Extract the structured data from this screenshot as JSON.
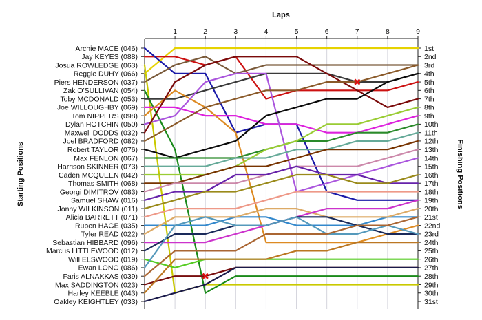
{
  "chart_data": {
    "type": "line",
    "title": "",
    "xlabel": "Laps",
    "ylabel_left": "Starting Positions",
    "ylabel_right": "Finishing Positions",
    "x": [
      0,
      1,
      2,
      3,
      4,
      5,
      6,
      7,
      8,
      9
    ],
    "xlim": [
      0,
      9
    ],
    "ylim": [
      1,
      31
    ],
    "y_inverted": true,
    "grid": "vertical",
    "starting_labels": [
      "Archie MACE (046)",
      "Jay KEYES (088)",
      "Josua ROWLEDGE (063)",
      "Reggie DUHY (066)",
      "Piers HENDERSON (037)",
      "Zak O'SULLIVAN (054)",
      "Toby MCDONALD (053)",
      "Joe WILLOUGHBY (069)",
      "Tom NIPPERS (098)",
      "Dylan HOTCHIN (050)",
      "Maxwell DODDS (032)",
      "Joel BRADFORD (082)",
      "Robert TAYLOR (076)",
      "Max FENLON (067)",
      "Harrison SKINNER (073)",
      "Caden MCQUEEN (042)",
      "Thomas SMITH (068)",
      "Georgi DIMITROV (083)",
      "Samuel SHAW (016)",
      "Jonny WILKINSON (011)",
      "Alicia BARRETT (071)",
      "Ruben HAGE (035)",
      "Tyler READ (022)",
      "Sebastian HIBBARD (096)",
      "Marcus LITTLEWOOD (012)",
      "Will ELSWOOD (019)",
      "Ewan LONG (086)",
      "Faris ALNAKKAS (039)",
      "Max SADDINGTON (023)",
      "Harley KEEBLE (043)",
      "Oakley KEIGHTLEY (033)"
    ],
    "finishing_labels": [
      "1st",
      "2nd",
      "3rd",
      "4th",
      "5th",
      "6th",
      "7th",
      "8th",
      "9th",
      "10th",
      "11th",
      "12th",
      "13th",
      "14th",
      "15th",
      "16th",
      "17th",
      "18th",
      "19th",
      "20th",
      "21st",
      "22nd",
      "23rd",
      "24th",
      "25th",
      "26th",
      "27th",
      "28th",
      "29th",
      "30th",
      "31st"
    ],
    "series": [
      {
        "color": "#e6d200",
        "values": [
          4,
          1,
          1,
          1,
          1,
          1,
          1,
          1,
          1,
          1
        ]
      },
      {
        "color": "#cc1111",
        "values": [
          2,
          2,
          3,
          2,
          7,
          6,
          6,
          6,
          6,
          5
        ]
      },
      {
        "color": "#1a1aa8",
        "values": [
          1,
          4,
          4,
          11,
          10,
          10,
          18,
          19,
          19,
          19
        ]
      },
      {
        "color": "#c9c900",
        "values": [
          3,
          30,
          29,
          29,
          29,
          29,
          29,
          29,
          29,
          29
        ]
      },
      {
        "color": "#7a5a3a",
        "values": [
          5,
          3,
          2,
          4,
          3,
          3,
          3,
          3,
          3,
          3
        ]
      },
      {
        "color": "#1a8a1a",
        "values": [
          6,
          13,
          30,
          28,
          28,
          28,
          28,
          28,
          28,
          28
        ]
      },
      {
        "color": "#3a3a3a",
        "values": [
          7,
          7,
          6,
          5,
          4,
          4,
          4,
          5,
          5,
          4
        ]
      },
      {
        "color": "#dd22dd",
        "values": [
          8,
          8,
          9,
          9,
          10,
          10,
          11,
          11,
          10,
          9
        ]
      },
      {
        "color": "#dd8a22",
        "values": [
          9,
          6,
          8,
          11,
          24,
          24,
          24,
          24,
          23,
          22
        ]
      },
      {
        "color": "#aa55dd",
        "values": [
          10,
          9,
          5,
          4,
          4,
          18,
          17,
          16,
          15,
          14
        ]
      },
      {
        "color": "#7a0a0a",
        "values": [
          11,
          5,
          3,
          2,
          2,
          2,
          4,
          6,
          8,
          7
        ]
      },
      {
        "color": "#8a5a2a",
        "values": [
          12,
          10,
          8,
          7,
          6,
          6,
          5,
          5,
          4,
          3
        ]
      },
      {
        "color": "#0a0a0a",
        "values": [
          13,
          14,
          13,
          12,
          9,
          8,
          7,
          7,
          5,
          4
        ]
      },
      {
        "color": "#2a8a2a",
        "values": [
          14,
          14,
          14,
          14,
          13,
          12,
          12,
          11,
          11,
          10
        ]
      },
      {
        "color": "#66aa99",
        "values": [
          15,
          15,
          15,
          14,
          14,
          13,
          13,
          12,
          12,
          11
        ]
      },
      {
        "color": "#99cc33",
        "values": [
          16,
          16,
          16,
          15,
          13,
          12,
          10,
          10,
          9,
          8
        ]
      },
      {
        "color": "#773300",
        "values": [
          17,
          17,
          16,
          15,
          15,
          14,
          13,
          13,
          13,
          12
        ]
      },
      {
        "color": "#cc88aa",
        "values": [
          18,
          17,
          17,
          17,
          16,
          15,
          15,
          15,
          14,
          13
        ]
      },
      {
        "color": "#6622aa",
        "values": [
          19,
          18,
          18,
          16,
          16,
          15,
          16,
          16,
          17,
          17
        ]
      },
      {
        "color": "#9a8a1a",
        "values": [
          20,
          19,
          18,
          18,
          17,
          16,
          16,
          17,
          17,
          16
        ]
      },
      {
        "color": "#ee9988",
        "values": [
          21,
          20,
          20,
          20,
          19,
          18,
          18,
          18,
          18,
          18
        ]
      },
      {
        "color": "#3388cc",
        "values": [
          22,
          22,
          22,
          21,
          21,
          22,
          22,
          22,
          21,
          21
        ]
      },
      {
        "color": "#ddaa66",
        "values": [
          23,
          21,
          21,
          21,
          20,
          20,
          21,
          21,
          21,
          20
        ]
      },
      {
        "color": "#cc33cc",
        "values": [
          24,
          24,
          24,
          23,
          22,
          21,
          20,
          20,
          20,
          19
        ]
      },
      {
        "color": "#1a2a5a",
        "values": [
          25,
          23,
          23,
          22,
          22,
          21,
          21,
          22,
          23,
          23
        ]
      },
      {
        "color": "#55cc22",
        "values": [
          26,
          27,
          26,
          26,
          26,
          26,
          26,
          26,
          26,
          26
        ]
      },
      {
        "color": "#5599bb",
        "values": [
          27,
          22,
          21,
          22,
          22,
          21,
          23,
          23,
          22,
          23
        ]
      },
      {
        "color": "#aa6633",
        "values": [
          28,
          25,
          25,
          25,
          23,
          23,
          23,
          22,
          22,
          21
        ]
      },
      {
        "color": "#770d0d",
        "values": [
          29,
          28,
          28,
          27,
          27,
          27,
          27,
          27,
          27,
          27
        ]
      },
      {
        "color": "#bb7722",
        "values": [
          30,
          26,
          26,
          26,
          26,
          25,
          25,
          24,
          24,
          24
        ]
      },
      {
        "color": "#1a1a4a",
        "values": [
          31,
          30,
          29,
          27,
          27,
          27,
          27,
          27,
          27,
          27
        ]
      }
    ],
    "markers": [
      {
        "type": "cross",
        "color": "#dd1111",
        "x": 7,
        "y": 5
      },
      {
        "type": "cross",
        "color": "#dd1111",
        "x": 2,
        "y": 28
      }
    ]
  }
}
